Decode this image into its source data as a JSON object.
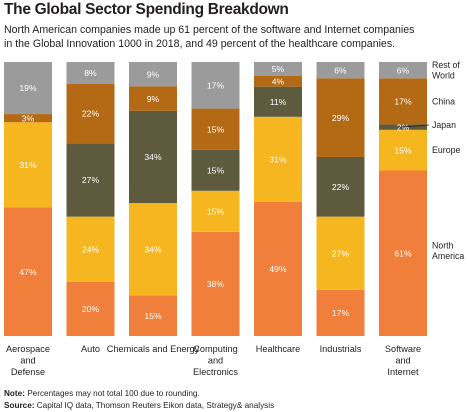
{
  "title": "The Global Sector Spending Breakdown",
  "subtitle_line1": "North American companies made up 61 percent of the software and Internet companies",
  "subtitle_line2": "in the Global Innovation 1000 in 2018, and 49 percent of the healthcare companies.",
  "note_label": "Note:",
  "note_text": " Percentages may not total 100 due to rounding.",
  "source_label": "Source:",
  "source_text": " Capital IQ data, Thomson Reuters Eikon data, Strategy& analysis",
  "colors": {
    "North America": "#f07f3c",
    "Europe": "#f6b61f",
    "Japan": "#5d5a3d",
    "China": "#b46a14",
    "Rest of World": "#9b9b9b"
  },
  "chart_data": {
    "type": "bar",
    "stacked": true,
    "normalized": true,
    "categories": [
      "Aerospace and Defense",
      "Auto",
      "Chemicals and Energy",
      "Computing and Electronics",
      "Healthcare",
      "Industrials",
      "Software and Internet"
    ],
    "category_lines": [
      [
        "Aerospace",
        "and",
        "Defense"
      ],
      [
        "Auto"
      ],
      [
        "Chemicals and Energy"
      ],
      [
        "Computing",
        "and",
        "Electronics"
      ],
      [
        "Healthcare"
      ],
      [
        "Industrials"
      ],
      [
        "Software",
        "and",
        "Internet"
      ]
    ],
    "series": [
      {
        "name": "North America",
        "values": [
          47,
          20,
          15,
          38,
          49,
          17,
          61
        ],
        "labels": [
          "47%",
          "20%",
          "15%",
          "38%",
          "49%",
          "17%",
          "61%"
        ]
      },
      {
        "name": "Europe",
        "values": [
          31,
          24,
          34,
          15,
          31,
          27,
          15
        ],
        "labels": [
          "31%",
          "24%",
          "34%",
          "15%",
          "31%",
          "27%",
          "15%"
        ]
      },
      {
        "name": "Japan",
        "values": [
          0,
          27,
          34,
          15,
          11,
          22,
          2
        ],
        "labels": [
          "",
          "27%",
          "34%",
          "15%",
          "11%",
          "22%",
          "2%"
        ]
      },
      {
        "name": "China",
        "values": [
          3,
          22,
          9,
          15,
          4,
          29,
          17
        ],
        "labels": [
          "3%",
          "22%",
          "9%",
          "15%",
          "4%",
          "29%",
          "17%"
        ]
      },
      {
        "name": "Rest of World",
        "values": [
          19,
          8,
          9,
          17,
          5,
          6,
          6
        ],
        "labels": [
          "19%",
          "8%",
          "9%",
          "17%",
          "5%",
          "6%",
          "6%"
        ]
      }
    ],
    "legend": [
      {
        "series": "Rest of World",
        "lines": [
          "Rest of",
          "World"
        ]
      },
      {
        "series": "China",
        "lines": [
          "China"
        ]
      },
      {
        "series": "Japan",
        "lines": [
          "Japan"
        ]
      },
      {
        "series": "Europe",
        "lines": [
          "Europe"
        ]
      },
      {
        "series": "North America",
        "lines": [
          "North",
          "America"
        ]
      }
    ],
    "legend_position": "right"
  }
}
